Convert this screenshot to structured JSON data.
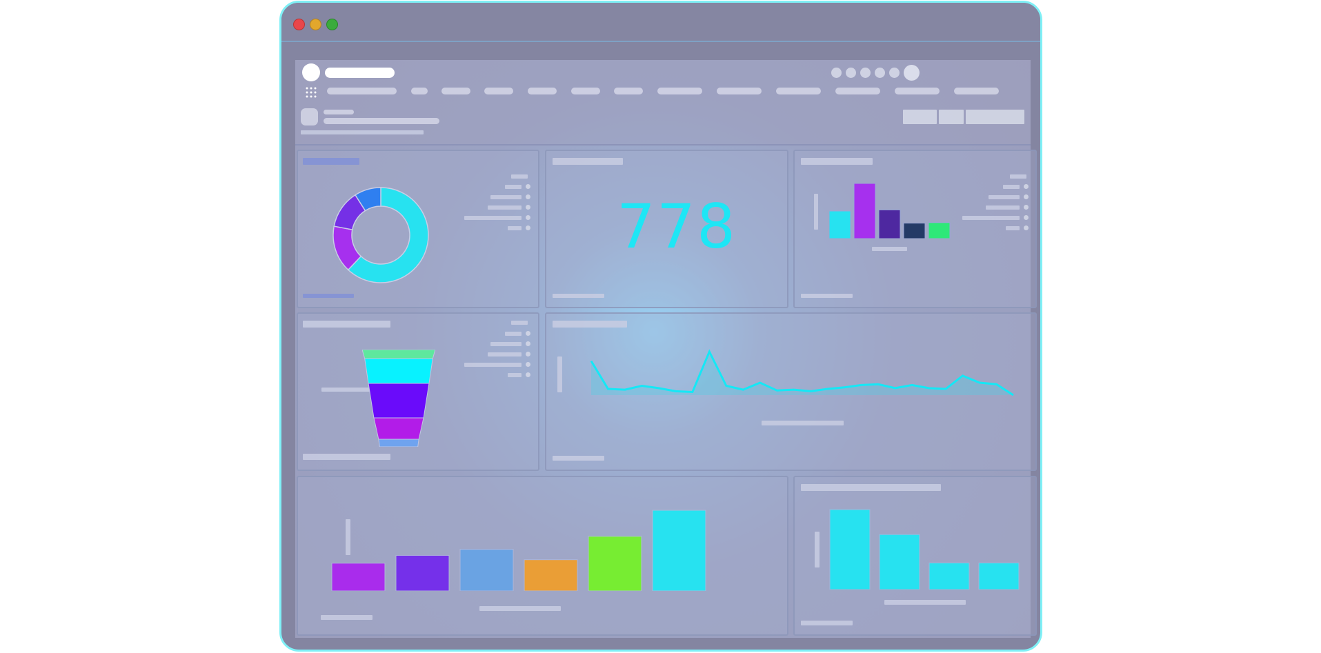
{
  "kpi": {
    "value": "778"
  },
  "colors": {
    "window_border": "#7ff0f6",
    "cyan": "#27e2f0",
    "purple": "#a630ee",
    "violet": "#6a1cf8",
    "blue": "#2f7ff0",
    "navy": "#243a66",
    "green": "#2ee878"
  },
  "icons": {
    "apps": "grid-icon",
    "window_controls": [
      "close-dot",
      "minimize-dot",
      "maximize-dot"
    ]
  },
  "donut": {
    "type": "pie",
    "values": [
      0.62,
      0.16,
      0.13,
      0.09
    ],
    "colors": [
      "#27e2f0",
      "#a630ee",
      "#7530e6",
      "#2f7ff0"
    ]
  },
  "funnel": {
    "type": "bar",
    "values": [
      1,
      0.93,
      0.83,
      0.68,
      0.55
    ],
    "colors": [
      "#5ee89e",
      "#08f2ff",
      "#6a0bfa",
      "#b21ce8",
      "#6fa3ef"
    ]
  },
  "chart_data": [
    {
      "type": "bar",
      "values": [
        50,
        100,
        52,
        28,
        29
      ],
      "colors": [
        "#27e2f0",
        "#a630ee",
        "#4e28a0",
        "#243a66",
        "#2ee878"
      ]
    },
    {
      "type": "area",
      "values": [
        44,
        8,
        7,
        12,
        9,
        5,
        4,
        56,
        12,
        7,
        16,
        6,
        7,
        5,
        8,
        10,
        13,
        14,
        9,
        13,
        9,
        8,
        25,
        16,
        14,
        0
      ]
    },
    {
      "type": "bar",
      "values": [
        32,
        41,
        48,
        36,
        63,
        93
      ],
      "colors": [
        "#a92cec",
        "#7530ea",
        "#6aa3e3",
        "#ea9e36",
        "#77ed32",
        "#27e2f0"
      ]
    },
    {
      "type": "bar",
      "values": [
        93,
        64,
        31,
        31
      ],
      "colors": [
        "#27e2f0",
        "#27e2f0",
        "#27e2f0",
        "#27e2f0"
      ]
    }
  ]
}
